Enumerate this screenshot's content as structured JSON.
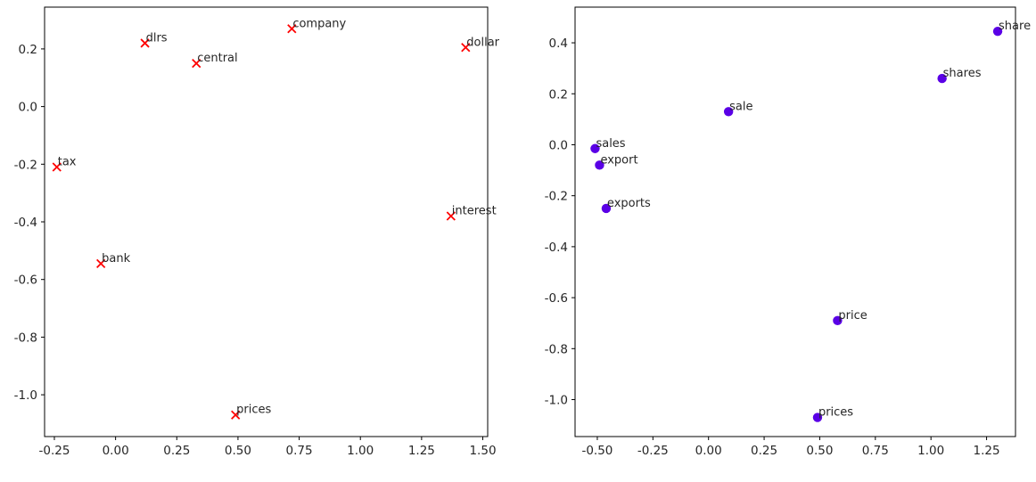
{
  "chart_data": [
    {
      "type": "scatter",
      "marker": "x",
      "color": "#ff0000",
      "xlim": [
        -0.29,
        1.52
      ],
      "ylim": [
        -1.145,
        0.345
      ],
      "xticks": [
        -0.25,
        0.0,
        0.25,
        0.5,
        0.75,
        1.0,
        1.25,
        1.5
      ],
      "xtick_labels": [
        "-0.25",
        "0.00",
        "0.25",
        "0.50",
        "0.75",
        "1.00",
        "1.25",
        "1.50"
      ],
      "yticks": [
        0.2,
        0.0,
        -0.2,
        -0.4,
        -0.6,
        -0.8,
        -1.0
      ],
      "ytick_labels": [
        "0.2",
        "0.0",
        "-0.2",
        "-0.4",
        "-0.6",
        "-0.8",
        "-1.0"
      ],
      "grid": false,
      "points": [
        {
          "label": "dlrs",
          "x": 0.12,
          "y": 0.22
        },
        {
          "label": "central",
          "x": 0.33,
          "y": 0.15
        },
        {
          "label": "company",
          "x": 0.72,
          "y": 0.27
        },
        {
          "label": "dollar",
          "x": 1.43,
          "y": 0.205
        },
        {
          "label": "tax",
          "x": -0.24,
          "y": -0.21
        },
        {
          "label": "interest",
          "x": 1.37,
          "y": -0.38
        },
        {
          "label": "bank",
          "x": -0.06,
          "y": -0.545
        },
        {
          "label": "prices",
          "x": 0.49,
          "y": -1.07
        }
      ]
    },
    {
      "type": "scatter",
      "marker": "o",
      "color": "#5a00e6",
      "xlim": [
        -0.6,
        1.38
      ],
      "ylim": [
        -1.145,
        0.54
      ],
      "xticks": [
        -0.5,
        -0.25,
        0.0,
        0.25,
        0.5,
        0.75,
        1.0,
        1.25
      ],
      "xtick_labels": [
        "-0.50",
        "-0.25",
        "0.00",
        "0.25",
        "0.50",
        "0.75",
        "1.00",
        "1.25"
      ],
      "yticks": [
        0.4,
        0.2,
        0.0,
        -0.2,
        -0.4,
        -0.6,
        -0.8,
        -1.0
      ],
      "ytick_labels": [
        "0.4",
        "0.2",
        "0.0",
        "-0.2",
        "-0.4",
        "-0.6",
        "-0.8",
        "-1.0"
      ],
      "grid": false,
      "points": [
        {
          "label": "share",
          "x": 1.3,
          "y": 0.445
        },
        {
          "label": "shares",
          "x": 1.05,
          "y": 0.26
        },
        {
          "label": "sale",
          "x": 0.09,
          "y": 0.13
        },
        {
          "label": "sales",
          "x": -0.51,
          "y": -0.015
        },
        {
          "label": "export",
          "x": -0.49,
          "y": -0.08
        },
        {
          "label": "exports",
          "x": -0.46,
          "y": -0.25
        },
        {
          "label": "price",
          "x": 0.58,
          "y": -0.69
        },
        {
          "label": "prices",
          "x": 0.49,
          "y": -1.07
        }
      ]
    }
  ]
}
